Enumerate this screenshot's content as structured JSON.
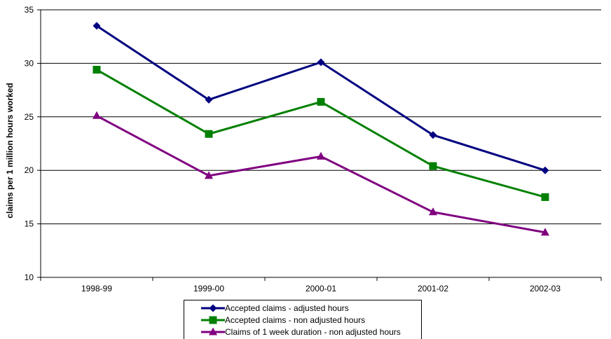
{
  "chart_data": {
    "type": "line",
    "title": "",
    "xlabel": "",
    "ylabel": "claims per 1 million hours worked",
    "categories": [
      "1998-99",
      "1999-00",
      "2000-01",
      "2001-02",
      "2002-03"
    ],
    "ylim": [
      10,
      35
    ],
    "yticks": [
      10,
      15,
      20,
      25,
      30,
      35
    ],
    "grid": true,
    "legend_position": "bottom",
    "series": [
      {
        "name": "Accepted claims - adjusted hours",
        "color": "#000080",
        "marker": "diamond",
        "values": [
          33.5,
          26.6,
          30.1,
          23.3,
          20.0
        ]
      },
      {
        "name": "Accepted claims - non adjusted hours",
        "color": "#008000",
        "marker": "square",
        "values": [
          29.4,
          23.4,
          26.4,
          20.4,
          17.5
        ]
      },
      {
        "name": "Claims of 1 week duration - non adjusted hours",
        "color": "#800080",
        "marker": "triangle",
        "values": [
          25.1,
          19.5,
          21.3,
          16.1,
          14.2
        ]
      }
    ]
  }
}
